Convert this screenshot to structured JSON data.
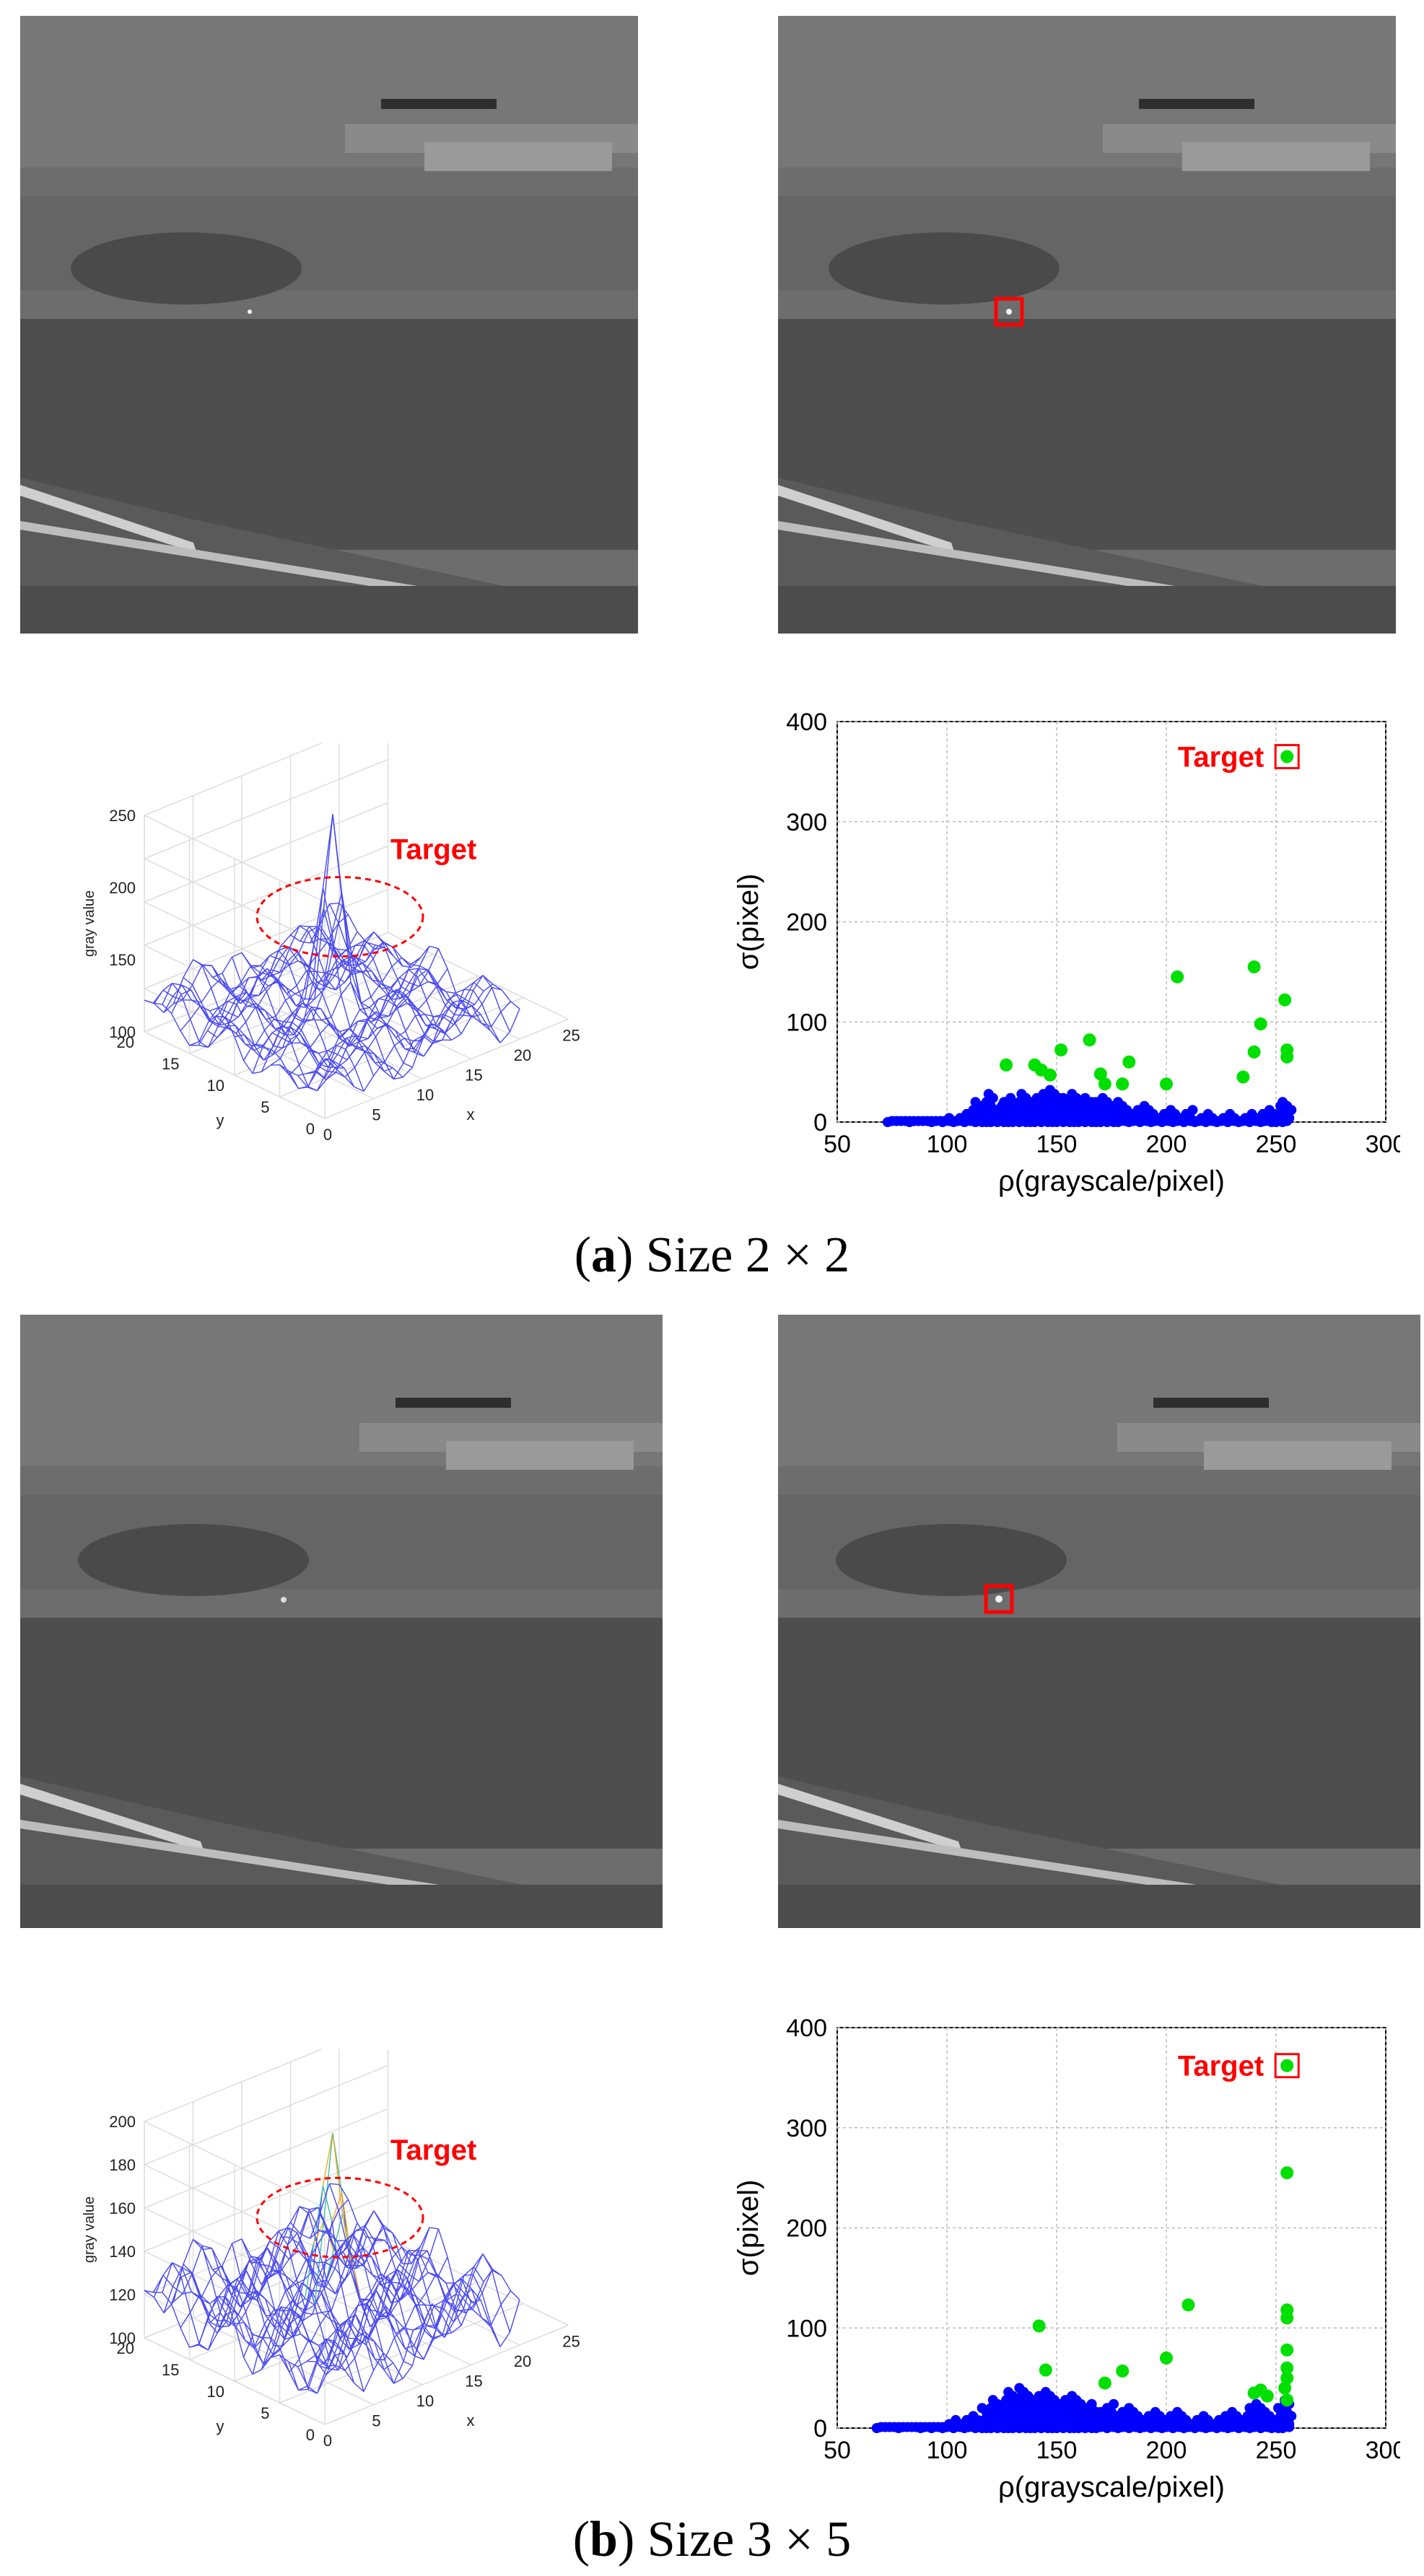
{
  "captions": {
    "a": {
      "letter": "a",
      "text": "Size 2 × 2"
    },
    "b": {
      "letter": "b",
      "text": "Size 3 × 5"
    }
  },
  "surface_plots": {
    "a": {
      "zlabel": "gray value",
      "xlabel": "x",
      "ylabel": "y",
      "z_ticks": [
        "250",
        "200",
        "150",
        "100"
      ],
      "y_ticks": [
        "20",
        "15",
        "10",
        "5",
        "0"
      ],
      "x_ticks": [
        "0",
        "5",
        "10",
        "15",
        "20",
        "25"
      ],
      "annotation": "Target"
    },
    "b": {
      "zlabel": "gray value",
      "xlabel": "x",
      "ylabel": "y",
      "z_ticks": [
        "200",
        "180",
        "160",
        "140",
        "120",
        "100"
      ],
      "y_ticks": [
        "20",
        "15",
        "10",
        "5",
        "0"
      ],
      "x_ticks": [
        "0",
        "5",
        "10",
        "15",
        "20",
        "25"
      ],
      "annotation": "Target"
    }
  },
  "chart_data": [
    {
      "type": "scatter",
      "panel": "a",
      "xlabel": "ρ(grayscale/pixel)",
      "ylabel": "σ(pixel)",
      "xlim": [
        50,
        300
      ],
      "ylim": [
        0,
        400
      ],
      "x_ticks": [
        "50",
        "100",
        "150",
        "200",
        "250",
        "300"
      ],
      "y_ticks": [
        "0",
        "100",
        "200",
        "300",
        "400"
      ],
      "grid": true,
      "annotation": "Target",
      "target_point": [
        255,
        365
      ],
      "series": [
        {
          "color": "#0000ff",
          "points": [
            [
              75,
              0
            ],
            [
              85,
              1
            ],
            [
              95,
              2
            ],
            [
              100,
              4
            ],
            [
              105,
              6
            ],
            [
              110,
              12
            ],
            [
              115,
              20
            ],
            [
              118,
              10
            ],
            [
              120,
              28
            ],
            [
              122,
              8
            ],
            [
              125,
              18
            ],
            [
              128,
              24
            ],
            [
              130,
              14
            ],
            [
              132,
              22
            ],
            [
              135,
              30
            ],
            [
              138,
              16
            ],
            [
              140,
              26
            ],
            [
              142,
              20
            ],
            [
              145,
              34
            ],
            [
              148,
              18
            ],
            [
              150,
              28
            ],
            [
              152,
              24
            ],
            [
              155,
              22
            ],
            [
              158,
              30
            ],
            [
              160,
              20
            ],
            [
              162,
              26
            ],
            [
              165,
              18
            ],
            [
              168,
              22
            ],
            [
              170,
              24
            ],
            [
              172,
              16
            ],
            [
              175,
              20
            ],
            [
              178,
              14
            ],
            [
              180,
              22
            ],
            [
              185,
              12
            ],
            [
              190,
              16
            ],
            [
              195,
              10
            ],
            [
              200,
              14
            ],
            [
              205,
              8
            ],
            [
              210,
              12
            ],
            [
              215,
              6
            ],
            [
              220,
              10
            ],
            [
              225,
              4
            ],
            [
              230,
              8
            ],
            [
              235,
              6
            ],
            [
              240,
              10
            ],
            [
              245,
              14
            ],
            [
              250,
              8
            ],
            [
              252,
              16
            ],
            [
              255,
              20
            ]
          ]
        },
        {
          "color": "#00e000",
          "points": [
            [
              127,
              57
            ],
            [
              140,
              57
            ],
            [
              143,
              52
            ],
            [
              147,
              47
            ],
            [
              152,
              72
            ],
            [
              165,
              82
            ],
            [
              170,
              48
            ],
            [
              172,
              38
            ],
            [
              180,
              38
            ],
            [
              183,
              60
            ],
            [
              200,
              38
            ],
            [
              205,
              145
            ],
            [
              235,
              45
            ],
            [
              240,
              155
            ],
            [
              240,
              70
            ],
            [
              243,
              98
            ],
            [
              254,
              122
            ],
            [
              255,
              65
            ],
            [
              255,
              72
            ],
            [
              255,
              365
            ]
          ]
        }
      ]
    },
    {
      "type": "scatter",
      "panel": "b",
      "xlabel": "ρ(grayscale/pixel)",
      "ylabel": "σ(pixel)",
      "xlim": [
        50,
        300
      ],
      "ylim": [
        0,
        400
      ],
      "x_ticks": [
        "50",
        "100",
        "150",
        "200",
        "250",
        "300"
      ],
      "y_ticks": [
        "0",
        "100",
        "200",
        "300",
        "400"
      ],
      "grid": true,
      "annotation": "Target",
      "target_point": [
        255,
        362
      ],
      "series": [
        {
          "color": "#0000ff",
          "points": [
            [
              70,
              0
            ],
            [
              80,
              0
            ],
            [
              90,
              1
            ],
            [
              95,
              2
            ],
            [
              100,
              4
            ],
            [
              105,
              8
            ],
            [
              110,
              14
            ],
            [
              115,
              10
            ],
            [
              118,
              22
            ],
            [
              120,
              16
            ],
            [
              122,
              30
            ],
            [
              125,
              24
            ],
            [
              128,
              38
            ],
            [
              130,
              18
            ],
            [
              132,
              32
            ],
            [
              135,
              40
            ],
            [
              138,
              26
            ],
            [
              140,
              34
            ],
            [
              142,
              28
            ],
            [
              145,
              36
            ],
            [
              148,
              22
            ],
            [
              150,
              30
            ],
            [
              152,
              26
            ],
            [
              155,
              34
            ],
            [
              158,
              24
            ],
            [
              160,
              28
            ],
            [
              162,
              20
            ],
            [
              165,
              26
            ],
            [
              168,
              22
            ],
            [
              170,
              18
            ],
            [
              175,
              24
            ],
            [
              180,
              16
            ],
            [
              185,
              20
            ],
            [
              190,
              14
            ],
            [
              195,
              18
            ],
            [
              200,
              12
            ],
            [
              205,
              16
            ],
            [
              210,
              10
            ],
            [
              215,
              14
            ],
            [
              220,
              8
            ],
            [
              225,
              12
            ],
            [
              230,
              18
            ],
            [
              235,
              14
            ],
            [
              240,
              24
            ],
            [
              245,
              20
            ],
            [
              250,
              12
            ],
            [
              253,
              24
            ],
            [
              255,
              30
            ]
          ]
        },
        {
          "color": "#00e000",
          "points": [
            [
              142,
              102
            ],
            [
              145,
              58
            ],
            [
              172,
              45
            ],
            [
              180,
              57
            ],
            [
              200,
              70
            ],
            [
              210,
              123
            ],
            [
              240,
              35
            ],
            [
              243,
              38
            ],
            [
              246,
              32
            ],
            [
              254,
              40
            ],
            [
              255,
              28
            ],
            [
              255,
              50
            ],
            [
              255,
              60
            ],
            [
              255,
              78
            ],
            [
              255,
              110
            ],
            [
              255,
              118
            ],
            [
              255,
              255
            ],
            [
              255,
              362
            ]
          ]
        }
      ]
    }
  ]
}
